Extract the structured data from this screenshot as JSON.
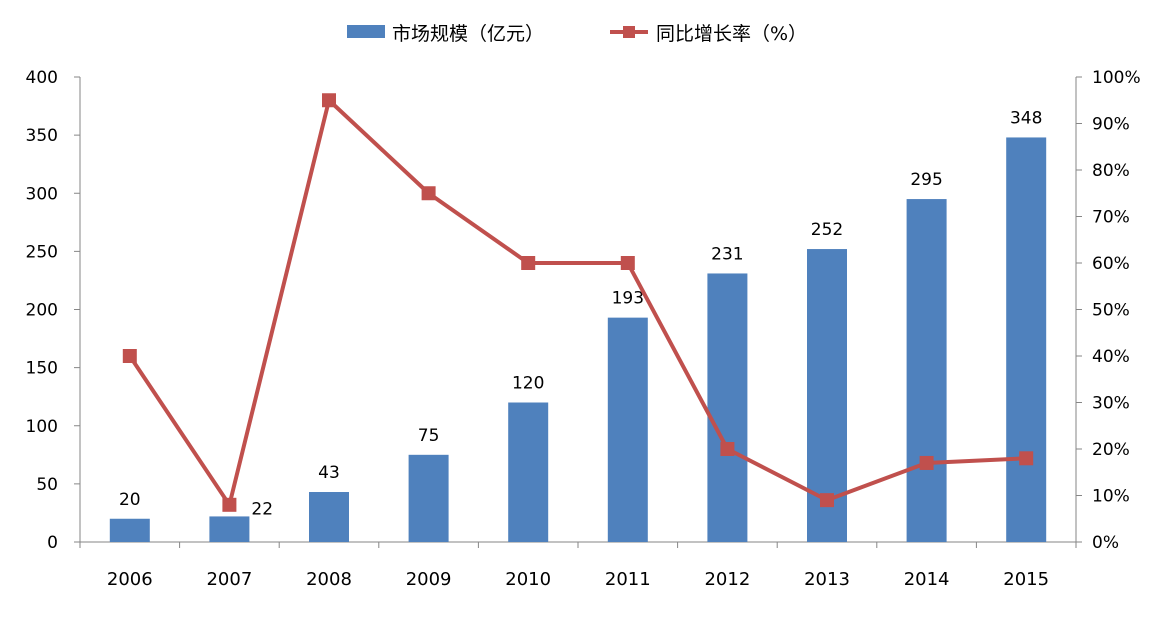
{
  "chart_data": {
    "type": "bar",
    "categories": [
      "2006",
      "2007",
      "2008",
      "2009",
      "2010",
      "2011",
      "2012",
      "2013",
      "2014",
      "2015"
    ],
    "series": [
      {
        "name": "市场规模（亿元）",
        "kind": "bar",
        "axis": "left",
        "color": "#4F81BD",
        "values": [
          20,
          22,
          43,
          75,
          120,
          193,
          231,
          252,
          295,
          348
        ],
        "data_labels": [
          "20",
          "22",
          "43",
          "75",
          "120",
          "193",
          "231",
          "252",
          "295",
          "348"
        ]
      },
      {
        "name": "同比增长率（%）",
        "kind": "line",
        "axis": "right",
        "color": "#C0504D",
        "marker": "square",
        "values": [
          40,
          8,
          95,
          75,
          60,
          60,
          20,
          9,
          17,
          18
        ]
      }
    ],
    "y_left": {
      "min": 0,
      "max": 400,
      "step": 50,
      "ticks": [
        "0",
        "50",
        "100",
        "150",
        "200",
        "250",
        "300",
        "350",
        "400"
      ]
    },
    "y_right": {
      "min": 0,
      "max": 100,
      "step": 10,
      "ticks": [
        "0%",
        "10%",
        "20%",
        "30%",
        "40%",
        "50%",
        "60%",
        "70%",
        "80%",
        "90%",
        "100%"
      ]
    },
    "legend_position": "top-center",
    "grid": false
  }
}
